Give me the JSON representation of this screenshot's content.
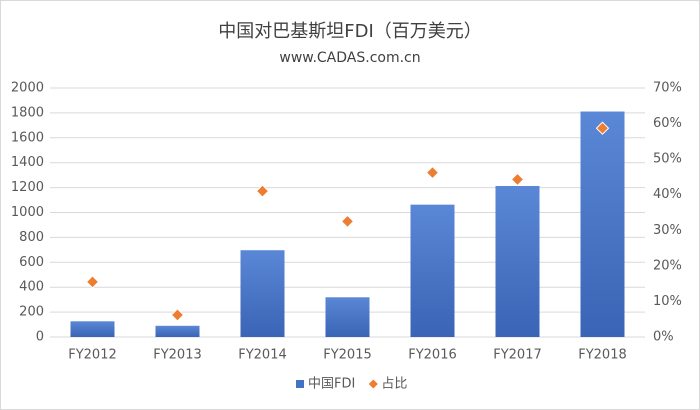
{
  "chart_data": {
    "type": "bar",
    "title": "中国对巴基斯坦FDI（百万美元）",
    "subtitle": "www.CADAS.com.cn",
    "categories": [
      "FY2012",
      "FY2013",
      "FY2014",
      "FY2015",
      "FY2016",
      "FY2017",
      "FY2018"
    ],
    "series": [
      {
        "name": "中国FDI",
        "color": "#4472c4",
        "values": [
          126,
          90,
          697,
          319,
          1063,
          1213,
          1811
        ]
      },
      {
        "name": "占比",
        "color": "#ed7d31",
        "type": "scatter",
        "axis": "y2",
        "values": [
          15.5,
          6.2,
          41.0,
          32.5,
          46.2,
          44.3,
          58.7
        ]
      }
    ],
    "ylim": [
      0,
      2000
    ],
    "yticks": [
      0,
      200,
      400,
      600,
      800,
      1000,
      1200,
      1400,
      1600,
      1800,
      2000
    ],
    "y2lim": [
      0,
      70
    ],
    "y2ticks": [
      {
        "value": 0,
        "label": "0%"
      },
      {
        "value": 10,
        "label": "10%"
      },
      {
        "value": 20,
        "label": "20%"
      },
      {
        "value": 30,
        "label": "30%"
      },
      {
        "value": 40,
        "label": "40%"
      },
      {
        "value": 50,
        "label": "50%"
      },
      {
        "value": 60,
        "label": "60%"
      },
      {
        "value": 70,
        "label": "70%"
      }
    ],
    "grid": true,
    "legend": "bottom"
  }
}
